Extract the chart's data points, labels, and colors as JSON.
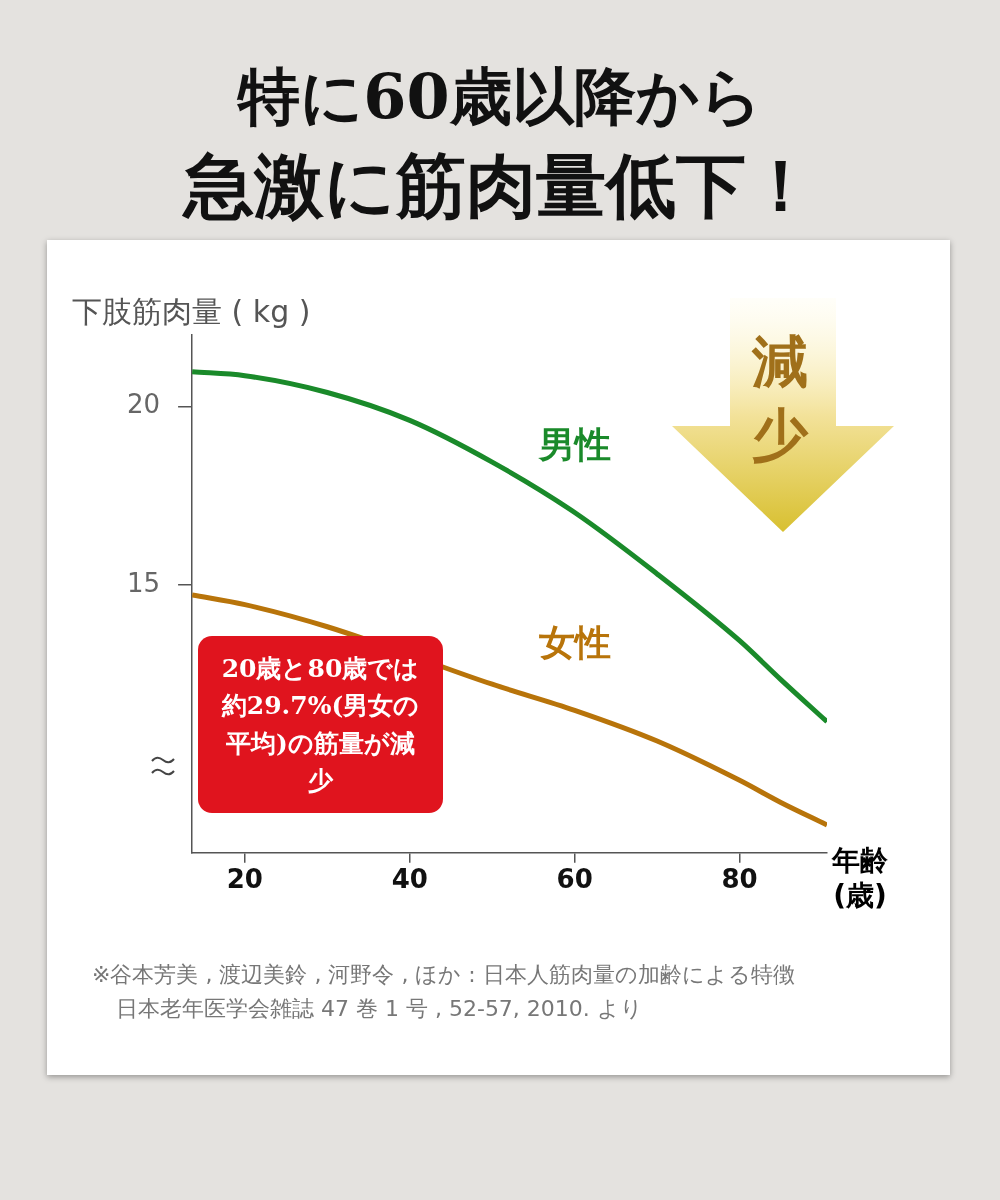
{
  "chart_data": {
    "type": "line",
    "title": "特に60歳以降から",
    "subtitle": "急激に筋肉量低下！",
    "ylabel": "下肢筋肉量 ( kg )",
    "xlabel": "年齢\n(歳)",
    "x": [
      13.6,
      20,
      30,
      40,
      50,
      60,
      70,
      80,
      85,
      90.6
    ],
    "series": [
      {
        "name": "男性",
        "color": "#1a8a2a",
        "values": [
          20.97,
          20.86,
          20.39,
          19.61,
          18.44,
          17.03,
          15.31,
          13.44,
          12.35,
          11.17
        ]
      },
      {
        "name": "女性",
        "color": "#b8740a",
        "values": [
          14.72,
          14.45,
          13.83,
          null,
          12.22,
          11.49,
          10.63,
          9.53,
          8.91,
          8.28
        ]
      }
    ],
    "xlim": [
      13.6,
      90.6
    ],
    "xticks": [
      20,
      40,
      60,
      80
    ],
    "ylim": [
      7.5,
      22
    ],
    "yticks": [
      15,
      20
    ],
    "grid": false,
    "legend": false,
    "marker": "none",
    "line_style": "solid",
    "annotations": [
      "20歳と80歳では約29.7%(男女の平均)の筋量が減少",
      "減少",
      "※谷本芳美 , 渡辺美鈴 , 河野令 , ほか : 日本人筋肉量の加齢による特徴日本老年医学会雑誌 47 巻 1 号 , 52-57, 2010. より"
    ]
  }
}
